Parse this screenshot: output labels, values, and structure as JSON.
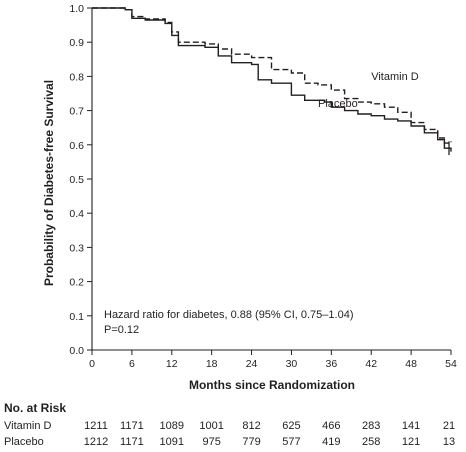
{
  "chart_data": {
    "type": "line",
    "title": "",
    "xlabel": "Months since Randomization",
    "ylabel": "Probability of Diabetes-free Survival",
    "xlim": [
      0,
      54
    ],
    "ylim": [
      0.0,
      1.0
    ],
    "x_ticks": [
      0,
      6,
      12,
      18,
      24,
      30,
      36,
      42,
      48,
      54
    ],
    "y_ticks": [
      "0.0",
      "0.1",
      "0.2",
      "0.3",
      "0.4",
      "0.5",
      "0.6",
      "0.7",
      "0.8",
      "0.9",
      "1.0"
    ],
    "grid": false,
    "series": [
      {
        "name": "Vitamin D",
        "line_style": "dashed",
        "color": "#231f20",
        "points": [
          [
            0,
            1.0
          ],
          [
            5,
            0.995
          ],
          [
            6,
            0.975
          ],
          [
            8,
            0.968
          ],
          [
            11,
            0.958
          ],
          [
            12,
            0.93
          ],
          [
            13,
            0.9
          ],
          [
            17,
            0.895
          ],
          [
            19,
            0.88
          ],
          [
            21,
            0.865
          ],
          [
            24,
            0.855
          ],
          [
            27,
            0.82
          ],
          [
            30,
            0.81
          ],
          [
            32,
            0.78
          ],
          [
            34,
            0.775
          ],
          [
            36,
            0.76
          ],
          [
            38,
            0.735
          ],
          [
            40,
            0.725
          ],
          [
            42,
            0.72
          ],
          [
            44,
            0.71
          ],
          [
            46,
            0.695
          ],
          [
            48,
            0.665
          ],
          [
            50,
            0.645
          ],
          [
            52,
            0.62
          ],
          [
            53,
            0.605
          ],
          [
            54,
            0.61
          ]
        ]
      },
      {
        "name": "Placebo",
        "line_style": "solid",
        "color": "#231f20",
        "points": [
          [
            0,
            1.0
          ],
          [
            5,
            0.995
          ],
          [
            6,
            0.97
          ],
          [
            8,
            0.965
          ],
          [
            11,
            0.955
          ],
          [
            12,
            0.92
          ],
          [
            13,
            0.89
          ],
          [
            17,
            0.885
          ],
          [
            19,
            0.86
          ],
          [
            21,
            0.84
          ],
          [
            24,
            0.835
          ],
          [
            25,
            0.79
          ],
          [
            27,
            0.78
          ],
          [
            30,
            0.745
          ],
          [
            32,
            0.73
          ],
          [
            35,
            0.725
          ],
          [
            36,
            0.71
          ],
          [
            38,
            0.7
          ],
          [
            40,
            0.69
          ],
          [
            42,
            0.685
          ],
          [
            44,
            0.675
          ],
          [
            46,
            0.67
          ],
          [
            48,
            0.655
          ],
          [
            50,
            0.635
          ],
          [
            52,
            0.615
          ],
          [
            53,
            0.59
          ],
          [
            54,
            0.58
          ]
        ]
      }
    ],
    "series_labels": [
      {
        "text": "Vitamin D",
        "x": 42,
        "y": 0.79
      },
      {
        "text": "Placebo",
        "x": 34,
        "y": 0.71
      }
    ],
    "annotations": {
      "hazard_ratio": "Hazard ratio for diabetes, 0.88 (95% CI, 0.75–1.04)",
      "p_value": "P=0.12"
    }
  },
  "risk_table": {
    "title": "No. at Risk",
    "months": [
      0,
      6,
      12,
      18,
      24,
      30,
      36,
      42,
      48,
      54
    ],
    "rows": [
      {
        "label": "Vitamin D",
        "values": [
          "1211",
          "1171",
          "1089",
          "1001",
          "812",
          "625",
          "466",
          "283",
          "141",
          "21"
        ]
      },
      {
        "label": "Placebo",
        "values": [
          "1212",
          "1171",
          "1091",
          "975",
          "779",
          "577",
          "419",
          "258",
          "121",
          "13"
        ]
      }
    ]
  }
}
